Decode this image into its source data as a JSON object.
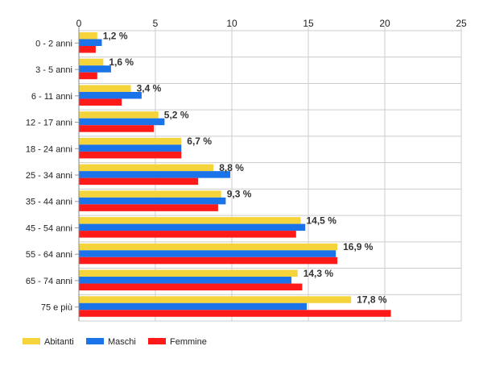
{
  "chart_data": {
    "type": "bar",
    "orientation": "horizontal",
    "categories": [
      "0 - 2 anni",
      "3 - 5 anni",
      "6 - 11 anni",
      "12 - 17 anni",
      "18 - 24 anni",
      "25 - 34 anni",
      "35 - 44 anni",
      "45 - 54 anni",
      "55 - 64 anni",
      "65 - 74 anni",
      "75 e più"
    ],
    "series": [
      {
        "name": "Abitanti",
        "color": "#f5d33a",
        "values": [
          1.2,
          1.6,
          3.4,
          5.2,
          6.7,
          8.8,
          9.3,
          14.5,
          16.9,
          14.3,
          17.8
        ]
      },
      {
        "name": "Maschi",
        "color": "#1a73e8",
        "values": [
          1.5,
          2.1,
          4.1,
          5.6,
          6.7,
          9.9,
          9.6,
          14.8,
          16.8,
          13.9,
          14.9
        ]
      },
      {
        "name": "Femmine",
        "color": "#ff1a1a",
        "values": [
          1.1,
          1.2,
          2.8,
          4.9,
          6.7,
          7.8,
          9.1,
          14.2,
          16.9,
          14.6,
          20.4
        ]
      }
    ],
    "data_labels": [
      "1,2 %",
      "1,6 %",
      "3,4 %",
      "5,2 %",
      "6,7 %",
      "8,8 %",
      "9,3 %",
      "14,5 %",
      "16,9 %",
      "14,3 %",
      "17,8 %"
    ],
    "xlim": [
      0,
      25
    ],
    "xticks": [
      0,
      5,
      10,
      15,
      20,
      25
    ],
    "xtick_labels": [
      "0",
      "5",
      "10",
      "15",
      "20",
      "25"
    ],
    "x_axis_position": "top",
    "grid": true,
    "legend_position": "bottom-left"
  }
}
